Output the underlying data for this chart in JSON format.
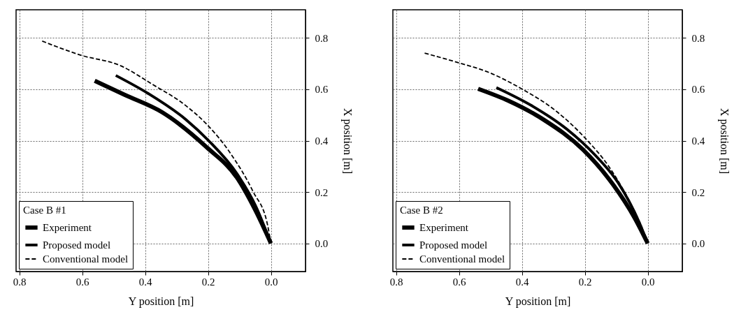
{
  "chart_data": [
    {
      "type": "line",
      "xlabel": "Y position [m]",
      "ylabel": "X position [m]",
      "legend_title": "Case B  #1",
      "legend": "bottom left",
      "grid": true,
      "xlim": [
        0.81,
        -0.11
      ],
      "xticks": [
        0.8,
        0.6,
        0.4,
        0.2,
        {
          "value": 0,
          "label": "0.0"
        }
      ],
      "ylim": [
        -0.11,
        0.91
      ],
      "yticks": [
        {
          "value": 0,
          "label": "0.0"
        },
        0.2,
        0.4,
        0.6,
        0.8
      ],
      "series": [
        {
          "name": "Experiment",
          "color": "#000000",
          "line_style": "solid",
          "x": [
            0.56,
            0.464,
            0.345,
            0.204,
            0.108,
            0.049,
            0.0
          ],
          "values": [
            0.633,
            0.578,
            0.51,
            0.374,
            0.256,
            0.128,
            0.0
          ]
        },
        {
          "name": "Proposed model",
          "color": "#000000",
          "line_style": "solid",
          "x": [
            0.493,
            0.389,
            0.271,
            0.198,
            0.109,
            0.049,
            0.0
          ],
          "values": [
            0.654,
            0.583,
            0.483,
            0.4,
            0.273,
            0.147,
            0.0
          ]
        },
        {
          "name": "Conventional model",
          "color": "#000000",
          "line_style": "dashed",
          "x": [
            0.727,
            0.604,
            0.478,
            0.376,
            0.271,
            0.204,
            0.131,
            0.056,
            0.011,
            0.0
          ],
          "values": [
            0.788,
            0.733,
            0.692,
            0.619,
            0.537,
            0.464,
            0.355,
            0.2,
            0.074,
            0.0
          ]
        }
      ]
    },
    {
      "type": "line",
      "xlabel": "Y position [m]",
      "ylabel": "X position [m]",
      "legend_title": "Case B  #2",
      "legend": "bottom left",
      "grid": true,
      "xlim": [
        0.81,
        -0.11
      ],
      "xticks": [
        0.8,
        0.6,
        0.4,
        0.2,
        {
          "value": 0,
          "label": "0.0"
        }
      ],
      "ylim": [
        -0.11,
        0.91
      ],
      "yticks": [
        {
          "value": 0,
          "label": "0.0"
        },
        0.2,
        0.4,
        0.6,
        0.8
      ],
      "series": [
        {
          "name": "Experiment",
          "color": "#000000",
          "line_style": "solid",
          "x": [
            0.539,
            0.442,
            0.331,
            0.205,
            0.109,
            0.042,
            0.0
          ],
          "values": [
            0.602,
            0.555,
            0.482,
            0.364,
            0.227,
            0.1,
            0.0
          ]
        },
        {
          "name": "Proposed model",
          "color": "#000000",
          "line_style": "solid",
          "x": [
            0.481,
            0.368,
            0.257,
            0.168,
            0.094,
            0.027,
            0.0
          ],
          "values": [
            0.607,
            0.536,
            0.445,
            0.345,
            0.236,
            0.082,
            0.0
          ]
        },
        {
          "name": "Conventional model",
          "color": "#000000",
          "line_style": "dashed",
          "x": [
            0.709,
            0.605,
            0.501,
            0.398,
            0.294,
            0.198,
            0.124,
            0.05,
            0.013,
            0.0
          ],
          "values": [
            0.741,
            0.705,
            0.664,
            0.6,
            0.518,
            0.409,
            0.3,
            0.145,
            0.045,
            0.0
          ]
        }
      ]
    }
  ]
}
